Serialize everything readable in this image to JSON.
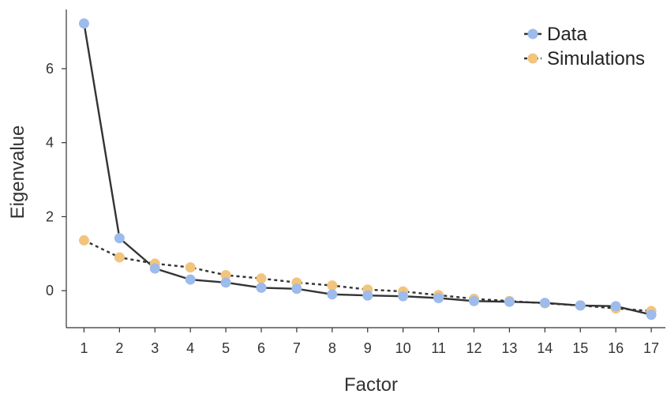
{
  "chart_data": {
    "type": "line",
    "title": "",
    "xlabel": "Factor",
    "ylabel": "Eigenvalue",
    "x": [
      1,
      2,
      3,
      4,
      5,
      6,
      7,
      8,
      9,
      10,
      11,
      12,
      13,
      14,
      15,
      16,
      17
    ],
    "xlim": [
      0.5,
      17.4
    ],
    "ylim": [
      -1.0,
      7.6
    ],
    "yticks": [
      0,
      2,
      4,
      6
    ],
    "grid": false,
    "legend_position": "top-right",
    "series": [
      {
        "name": "Data",
        "values": [
          7.22,
          1.42,
          0.6,
          0.3,
          0.22,
          0.08,
          0.05,
          -0.1,
          -0.13,
          -0.15,
          -0.2,
          -0.28,
          -0.3,
          -0.33,
          -0.4,
          -0.42,
          -0.65
        ],
        "color": "#9DBBEB",
        "line_style": "solid"
      },
      {
        "name": "Simulations",
        "values": [
          1.36,
          0.9,
          0.73,
          0.63,
          0.42,
          0.33,
          0.22,
          0.14,
          0.03,
          -0.02,
          -0.12,
          -0.22,
          -0.28,
          -0.34,
          -0.4,
          -0.48,
          -0.55
        ],
        "color": "#F2C47E",
        "line_style": "dotted"
      }
    ]
  }
}
